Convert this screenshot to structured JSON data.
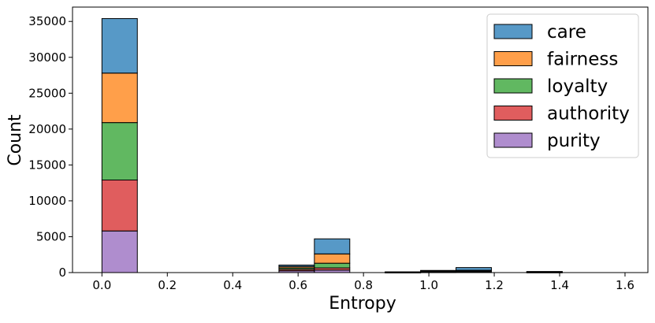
{
  "chart_data": {
    "type": "bar",
    "stacked": true,
    "title": "",
    "xlabel": "Entropy",
    "ylabel": "Count",
    "xlim": [
      -0.09,
      1.67
    ],
    "ylim": [
      0,
      37000
    ],
    "grid": false,
    "legend_position": "top-right",
    "xticks": [
      0.0,
      0.2,
      0.4,
      0.6,
      0.8,
      1.0,
      1.2,
      1.4,
      1.6
    ],
    "xtick_labels": [
      "0.0",
      "0.2",
      "0.4",
      "0.6",
      "0.8",
      "1.0",
      "1.2",
      "1.4",
      "1.6"
    ],
    "yticks": [
      0,
      5000,
      10000,
      15000,
      20000,
      25000,
      30000,
      35000
    ],
    "ytick_labels": [
      "0",
      "5000",
      "10000",
      "15000",
      "20000",
      "25000",
      "30000",
      "35000"
    ],
    "bin_edges": [
      0.0,
      0.1083,
      0.2166,
      0.3249,
      0.4332,
      0.5415,
      0.6498,
      0.7581,
      0.8664,
      0.9747,
      1.083,
      1.1913,
      1.2996,
      1.4079,
      1.5162,
      1.6245
    ],
    "series": [
      {
        "name": "purity",
        "color": "#9467bd",
        "values": [
          5800,
          0,
          0,
          0,
          0,
          250,
          350,
          0,
          20,
          60,
          80,
          0,
          30,
          0,
          0
        ]
      },
      {
        "name": "authority",
        "color": "#d62728",
        "values": [
          7100,
          0,
          0,
          0,
          0,
          200,
          300,
          0,
          20,
          60,
          80,
          0,
          30,
          0,
          0
        ]
      },
      {
        "name": "loyalty",
        "color": "#2ca02c",
        "values": [
          8000,
          0,
          0,
          0,
          0,
          200,
          650,
          0,
          20,
          60,
          80,
          0,
          30,
          0,
          0
        ]
      },
      {
        "name": "fairness",
        "color": "#ff7f0e",
        "values": [
          6900,
          0,
          0,
          0,
          0,
          200,
          1300,
          0,
          20,
          60,
          80,
          0,
          30,
          0,
          0
        ]
      },
      {
        "name": "care",
        "color": "#1f77b4",
        "values": [
          7600,
          0,
          0,
          0,
          0,
          200,
          2100,
          0,
          20,
          60,
          380,
          0,
          30,
          0,
          0
        ]
      }
    ],
    "legend_order": [
      "care",
      "fairness",
      "loyalty",
      "authority",
      "purity"
    ]
  }
}
